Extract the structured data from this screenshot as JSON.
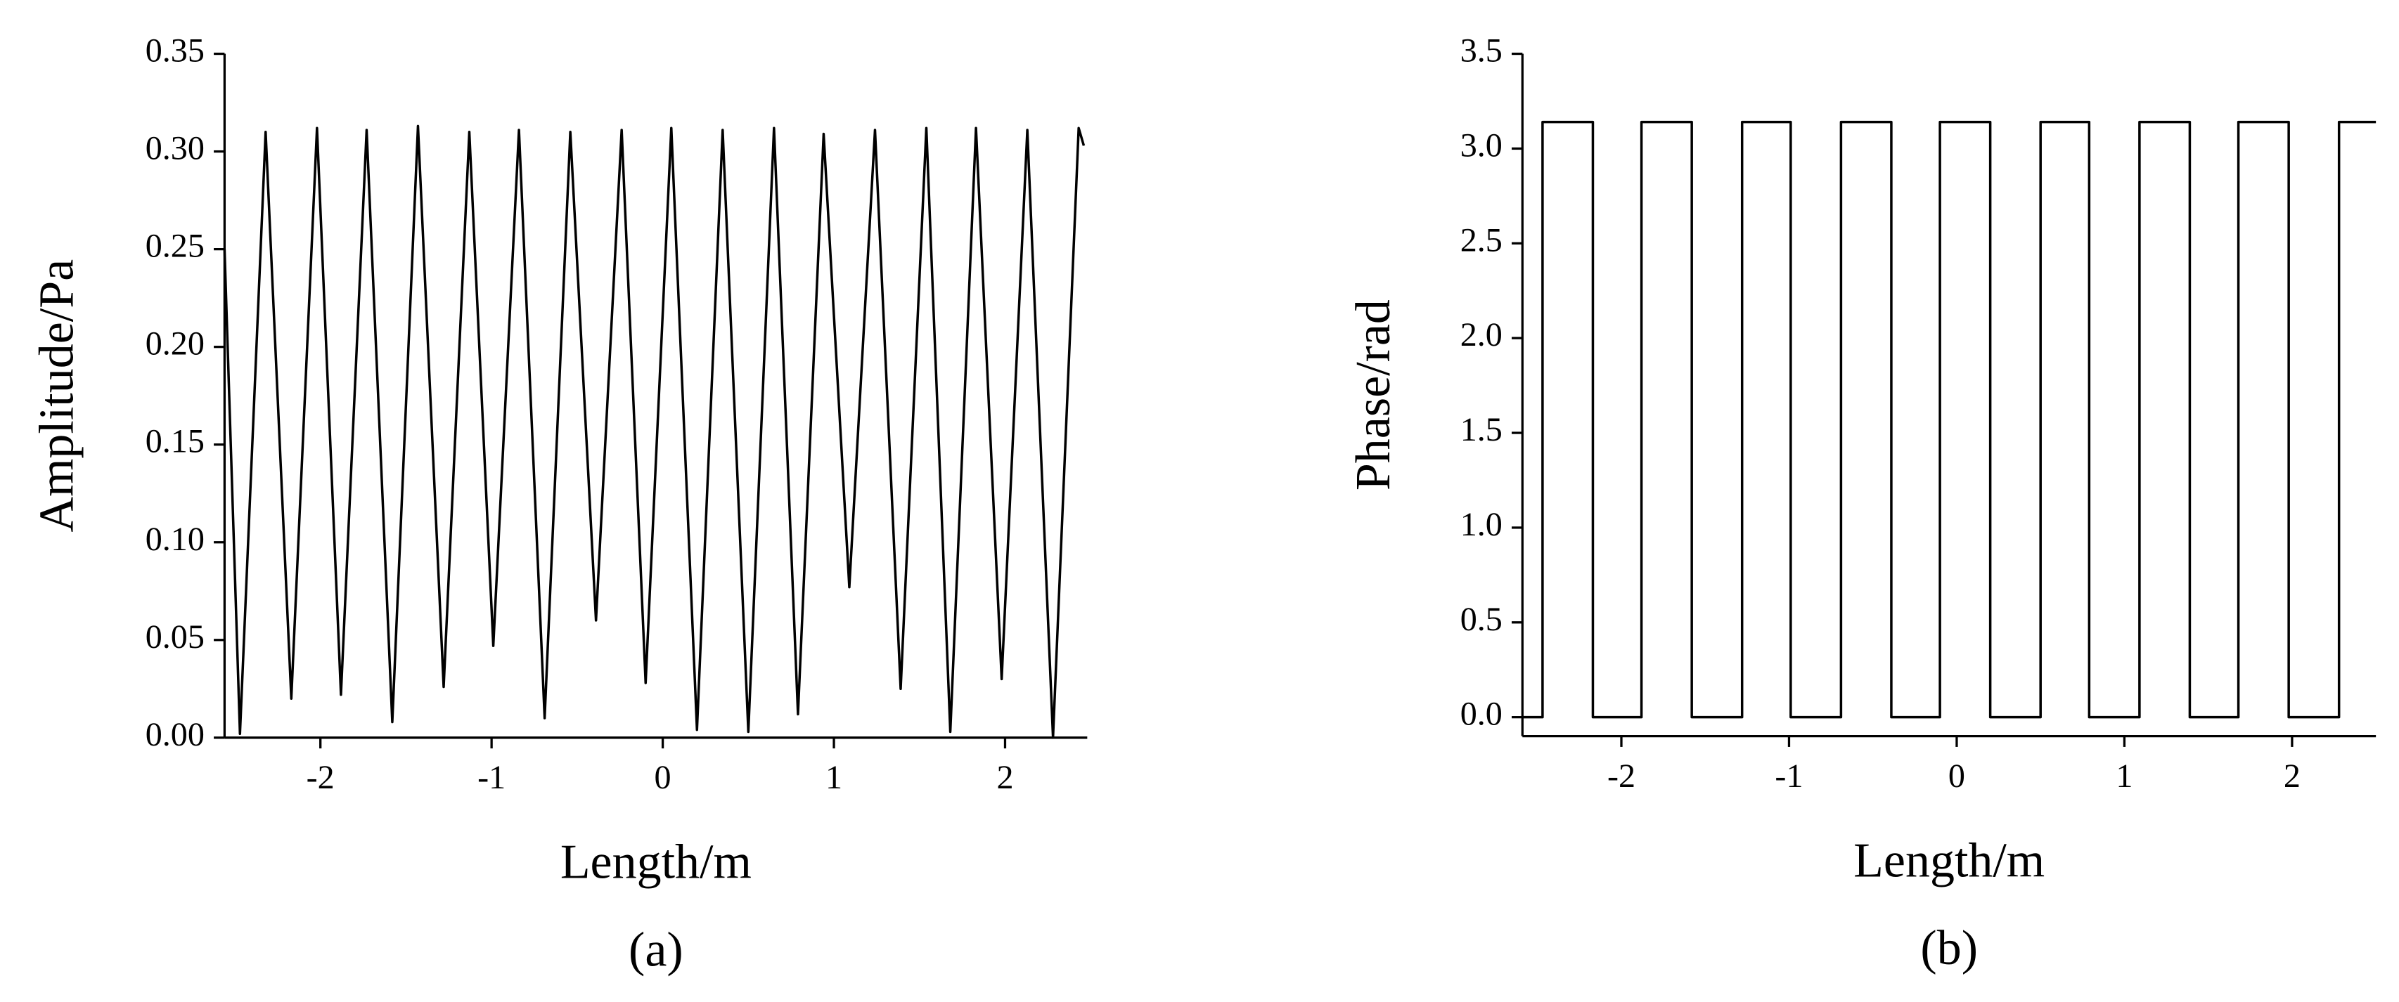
{
  "chart_data": [
    {
      "type": "line",
      "xlabel": "Length/m",
      "ylabel": "Amplitude/Pa",
      "caption": "(a)",
      "xlim": [
        -2.56,
        2.48
      ],
      "ylim": [
        0,
        0.35
      ],
      "xticks": [
        -2,
        -1,
        0,
        1,
        2
      ],
      "yticks": [
        {
          "value": 0,
          "label": "0.00"
        },
        {
          "value": 0.05,
          "label": "0.05"
        },
        {
          "value": 0.1,
          "label": "0.10"
        },
        {
          "value": 0.15,
          "label": "0.15"
        },
        {
          "value": 0.2,
          "label": "0.20"
        },
        {
          "value": 0.25,
          "label": "0.25"
        },
        {
          "value": 0.3,
          "label": "0.30"
        },
        {
          "value": 0.35,
          "label": "0.35"
        }
      ],
      "x": [
        -2.56,
        -2.47,
        -2.32,
        -2.17,
        -2.02,
        -1.88,
        -1.73,
        -1.58,
        -1.43,
        -1.28,
        -1.13,
        -0.99,
        -0.84,
        -0.69,
        -0.54,
        -0.39,
        -0.24,
        -0.1,
        0.05,
        0.2,
        0.35,
        0.5,
        0.65,
        0.79,
        0.94,
        1.09,
        1.24,
        1.39,
        1.54,
        1.68,
        1.83,
        1.98,
        2.13,
        2.28,
        2.43,
        2.46
      ],
      "series": [
        {
          "color": "#000000",
          "values": [
            0.25,
            0.002,
            0.31,
            0.02,
            0.312,
            0.022,
            0.311,
            0.008,
            0.313,
            0.026,
            0.31,
            0.047,
            0.311,
            0.01,
            0.31,
            0.06,
            0.311,
            0.028,
            0.312,
            0.004,
            0.311,
            0.003,
            0.312,
            0.012,
            0.309,
            0.077,
            0.311,
            0.025,
            0.312,
            0.003,
            0.312,
            0.03,
            0.311,
            0.0,
            0.312,
            0.303
          ]
        }
      ]
    },
    {
      "type": "line",
      "xlabel": "Length/m",
      "ylabel": "Phase/rad",
      "caption": "(b)",
      "xlim": [
        -2.59,
        2.5
      ],
      "ylim": [
        -0.1,
        3.5
      ],
      "xticks": [
        -2,
        -1,
        0,
        1,
        2
      ],
      "yticks": [
        {
          "value": 0,
          "label": "0.0"
        },
        0.5,
        {
          "value": 1,
          "label": "1.0"
        },
        1.5,
        {
          "value": 2,
          "label": "2.0"
        },
        2.5,
        {
          "value": 3,
          "label": "3.0"
        },
        3.5
      ],
      "x": [
        -2.59,
        -2.47,
        -2.47,
        -2.17,
        -2.17,
        -1.88,
        -1.88,
        -1.58,
        -1.58,
        -1.28,
        -1.28,
        -0.99,
        -0.99,
        -0.69,
        -0.69,
        -0.39,
        -0.39,
        -0.1,
        -0.1,
        0.2,
        0.2,
        0.5,
        0.5,
        0.79,
        0.79,
        1.09,
        1.09,
        1.39,
        1.39,
        1.68,
        1.68,
        1.98,
        1.98,
        2.28,
        2.28,
        2.5
      ],
      "series": [
        {
          "color": "#000000",
          "values": [
            0,
            0,
            3.14,
            3.14,
            0,
            0,
            3.14,
            3.14,
            0,
            0,
            3.14,
            3.14,
            0,
            0,
            3.14,
            3.14,
            0,
            0,
            3.14,
            3.14,
            0,
            0,
            3.14,
            3.14,
            0,
            0,
            3.14,
            3.14,
            0,
            0,
            3.14,
            3.14,
            0,
            0,
            3.14,
            3.14
          ]
        }
      ]
    }
  ]
}
